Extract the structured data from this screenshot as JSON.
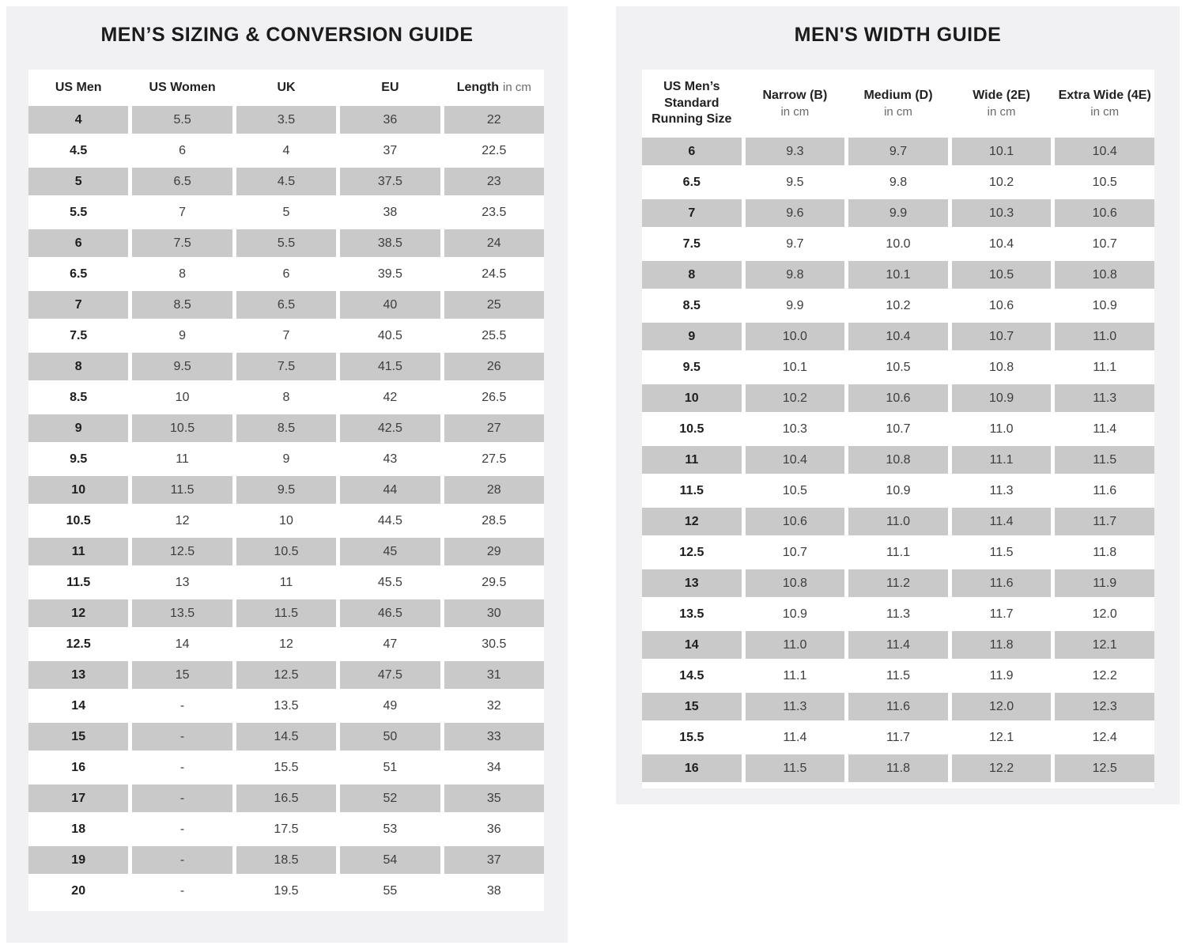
{
  "left_panel": {
    "title": "MEN’S SIZING & CONVERSION GUIDE",
    "table": {
      "columns": [
        {
          "title": "US Men"
        },
        {
          "title": "US Women"
        },
        {
          "title": "UK"
        },
        {
          "title": "EU"
        },
        {
          "title": "Length",
          "unit": "in cm"
        }
      ],
      "rows": [
        [
          "4",
          "5.5",
          "3.5",
          "36",
          "22"
        ],
        [
          "4.5",
          "6",
          "4",
          "37",
          "22.5"
        ],
        [
          "5",
          "6.5",
          "4.5",
          "37.5",
          "23"
        ],
        [
          "5.5",
          "7",
          "5",
          "38",
          "23.5"
        ],
        [
          "6",
          "7.5",
          "5.5",
          "38.5",
          "24"
        ],
        [
          "6.5",
          "8",
          "6",
          "39.5",
          "24.5"
        ],
        [
          "7",
          "8.5",
          "6.5",
          "40",
          "25"
        ],
        [
          "7.5",
          "9",
          "7",
          "40.5",
          "25.5"
        ],
        [
          "8",
          "9.5",
          "7.5",
          "41.5",
          "26"
        ],
        [
          "8.5",
          "10",
          "8",
          "42",
          "26.5"
        ],
        [
          "9",
          "10.5",
          "8.5",
          "42.5",
          "27"
        ],
        [
          "9.5",
          "11",
          "9",
          "43",
          "27.5"
        ],
        [
          "10",
          "11.5",
          "9.5",
          "44",
          "28"
        ],
        [
          "10.5",
          "12",
          "10",
          "44.5",
          "28.5"
        ],
        [
          "11",
          "12.5",
          "10.5",
          "45",
          "29"
        ],
        [
          "11.5",
          "13",
          "11",
          "45.5",
          "29.5"
        ],
        [
          "12",
          "13.5",
          "11.5",
          "46.5",
          "30"
        ],
        [
          "12.5",
          "14",
          "12",
          "47",
          "30.5"
        ],
        [
          "13",
          "15",
          "12.5",
          "47.5",
          "31"
        ],
        [
          "14",
          "-",
          "13.5",
          "49",
          "32"
        ],
        [
          "15",
          "-",
          "14.5",
          "50",
          "33"
        ],
        [
          "16",
          "-",
          "15.5",
          "51",
          "34"
        ],
        [
          "17",
          "-",
          "16.5",
          "52",
          "35"
        ],
        [
          "18",
          "-",
          "17.5",
          "53",
          "36"
        ],
        [
          "19",
          "-",
          "18.5",
          "54",
          "37"
        ],
        [
          "20",
          "-",
          "19.5",
          "55",
          "38"
        ]
      ]
    }
  },
  "right_panel": {
    "title": "MEN'S WIDTH GUIDE",
    "table": {
      "columns": [
        {
          "title": "US Men’s Standard Running Size"
        },
        {
          "title": "Narrow (B)",
          "unit": "in cm"
        },
        {
          "title": "Medium (D)",
          "unit": "in cm"
        },
        {
          "title": "Wide (2E)",
          "unit": "in cm"
        },
        {
          "title": "Extra Wide (4E)",
          "unit": "in cm"
        }
      ],
      "rows": [
        [
          "6",
          "9.3",
          "9.7",
          "10.1",
          "10.4"
        ],
        [
          "6.5",
          "9.5",
          "9.8",
          "10.2",
          "10.5"
        ],
        [
          "7",
          "9.6",
          "9.9",
          "10.3",
          "10.6"
        ],
        [
          "7.5",
          "9.7",
          "10.0",
          "10.4",
          "10.7"
        ],
        [
          "8",
          "9.8",
          "10.1",
          "10.5",
          "10.8"
        ],
        [
          "8.5",
          "9.9",
          "10.2",
          "10.6",
          "10.9"
        ],
        [
          "9",
          "10.0",
          "10.4",
          "10.7",
          "11.0"
        ],
        [
          "9.5",
          "10.1",
          "10.5",
          "10.8",
          "11.1"
        ],
        [
          "10",
          "10.2",
          "10.6",
          "10.9",
          "11.3"
        ],
        [
          "10.5",
          "10.3",
          "10.7",
          "11.0",
          "11.4"
        ],
        [
          "11",
          "10.4",
          "10.8",
          "11.1",
          "11.5"
        ],
        [
          "11.5",
          "10.5",
          "10.9",
          "11.3",
          "11.6"
        ],
        [
          "12",
          "10.6",
          "11.0",
          "11.4",
          "11.7"
        ],
        [
          "12.5",
          "10.7",
          "11.1",
          "11.5",
          "11.8"
        ],
        [
          "13",
          "10.8",
          "11.2",
          "11.6",
          "11.9"
        ],
        [
          "13.5",
          "10.9",
          "11.3",
          "11.7",
          "12.0"
        ],
        [
          "14",
          "11.0",
          "11.4",
          "11.8",
          "12.1"
        ],
        [
          "14.5",
          "11.1",
          "11.5",
          "11.9",
          "12.2"
        ],
        [
          "15",
          "11.3",
          "11.6",
          "12.0",
          "12.3"
        ],
        [
          "15.5",
          "11.4",
          "11.7",
          "12.1",
          "12.4"
        ],
        [
          "16",
          "11.5",
          "11.8",
          "12.2",
          "12.5"
        ]
      ]
    }
  },
  "colors": {
    "page_bg": "#ffffff",
    "panel_bg": "#f1f1f3",
    "table_bg": "#ffffff",
    "row_shade": "#c9c9c9",
    "title_text": "#1b1b1b",
    "cell_text": "#3d3d3d",
    "unit_text": "#6a6a6a"
  }
}
